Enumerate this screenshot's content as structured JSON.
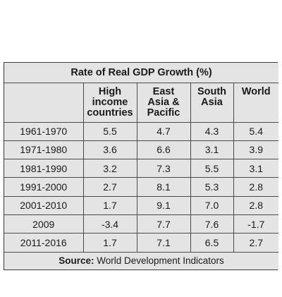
{
  "chart_data": {
    "type": "table",
    "title": "Rate of Real GDP Growth (%)",
    "columns": [
      "",
      "High income countries",
      "East Asia & Pacific",
      "South Asia",
      "World"
    ],
    "column_lines": [
      [
        ""
      ],
      [
        "High",
        "income",
        "countries"
      ],
      [
        "East",
        "Asia &",
        "Pacific"
      ],
      [
        "South",
        "Asia"
      ],
      [
        "World"
      ]
    ],
    "rows": [
      {
        "period": "1961-1970",
        "values": [
          "5.5",
          "4.7",
          "4.3",
          "5.4"
        ]
      },
      {
        "period": "1971-1980",
        "values": [
          "3.6",
          "6.6",
          "3.1",
          "3.9"
        ]
      },
      {
        "period": "1981-1990",
        "values": [
          "3.2",
          "7.3",
          "5.5",
          "3.1"
        ]
      },
      {
        "period": "1991-2000",
        "values": [
          "2.7",
          "8.1",
          "5.3",
          "2.8"
        ]
      },
      {
        "period": "2001-2010",
        "values": [
          "1.7",
          "9.1",
          "7.0",
          "2.8"
        ]
      },
      {
        "period": "2009",
        "values": [
          "-3.4",
          "7.7",
          "7.6",
          "-1.7"
        ]
      },
      {
        "period": "2011-2016",
        "values": [
          "1.7",
          "7.1",
          "6.5",
          "2.7"
        ]
      }
    ],
    "source_label": "Source:",
    "source_text": " World Development Indicators"
  },
  "colors": {
    "background": "#e4e4e4",
    "border": "#4a4a4a",
    "text": "#1a1a1a"
  }
}
